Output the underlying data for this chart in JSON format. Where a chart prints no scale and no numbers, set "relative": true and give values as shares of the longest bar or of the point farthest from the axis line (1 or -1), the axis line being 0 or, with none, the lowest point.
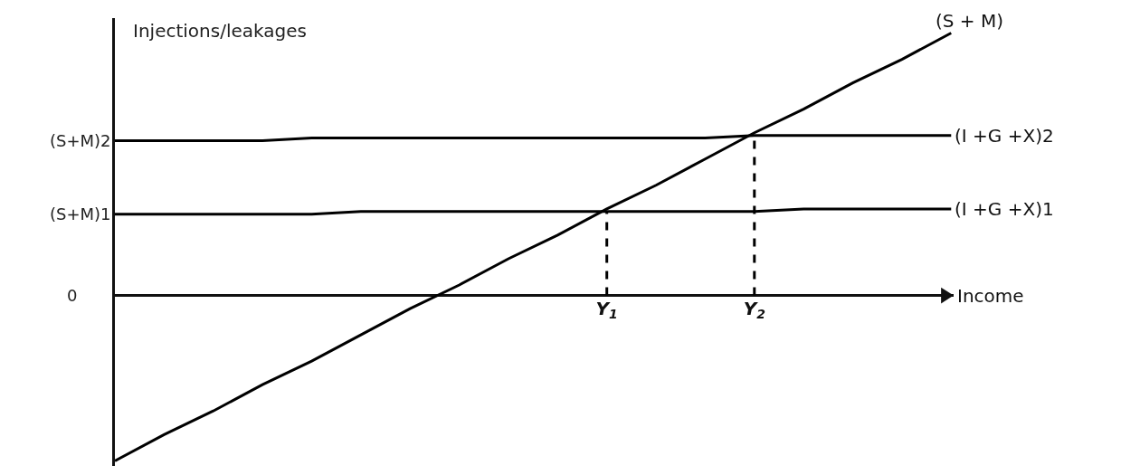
{
  "chart_data": {
    "type": "line",
    "relative": true,
    "ylabel": "Injections/leakages",
    "xlabel": "Income",
    "categories": [
      null,
      null,
      null,
      null,
      null,
      null,
      null,
      null,
      null,
      null,
      "Y$_{1}$",
      null,
      null,
      "Y$_{2}$",
      null,
      null,
      null,
      null
    ],
    "series": [
      {
        "name": "(S + M)",
        "color": "#000000",
        "values": [
          -0.63,
          -0.53,
          -0.44,
          -0.34,
          -0.25,
          -0.15,
          -0.05,
          0.04,
          0.14,
          0.23,
          0.33,
          0.42,
          0.52,
          0.62,
          0.71,
          0.81,
          0.9,
          1
        ]
      },
      {
        "name": "(I +G +X)1",
        "color": "#000000",
        "values": [
          0.31,
          0.31,
          0.31,
          0.31,
          0.31,
          0.32,
          0.32,
          0.32,
          0.32,
          0.32,
          0.32,
          0.32,
          0.32,
          0.32,
          0.33,
          0.33,
          0.33,
          0.33
        ]
      },
      {
        "name": "(I +G +X)2",
        "color": "#000000",
        "values": [
          0.59,
          0.59,
          0.59,
          0.59,
          0.6,
          0.6,
          0.6,
          0.6,
          0.6,
          0.6,
          0.6,
          0.6,
          0.6,
          0.61,
          0.61,
          0.61,
          0.61,
          0.61
        ]
      },
      {
        "color": "#000000",
        "line_style": "dashed",
        "x": [
          "Y$_{1}$",
          "Y$_{1}$"
        ],
        "values": [
          0,
          0.32
        ]
      },
      {
        "color": "#000000",
        "line_style": "dashed",
        "x": [
          "Y$_{2}$",
          "Y$_{2}$"
        ],
        "values": [
          0,
          0.61
        ]
      }
    ],
    "annotations": [
      "(S+M)2",
      "(S+M)1",
      "0"
    ]
  }
}
